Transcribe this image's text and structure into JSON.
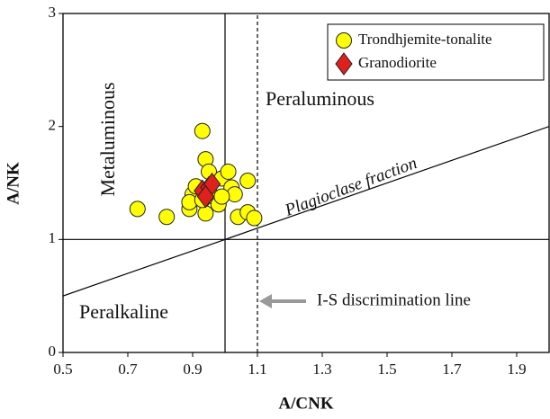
{
  "chart_data": {
    "type": "scatter",
    "x_label": "A/CNK",
    "y_label": "A/NK",
    "xlim": [
      0.5,
      2.0
    ],
    "ylim": [
      0,
      3
    ],
    "xticks": [
      0.5,
      0.7,
      0.9,
      1.1,
      1.3,
      1.5,
      1.7,
      1.9
    ],
    "yticks": [
      0,
      1,
      2,
      3
    ],
    "legend": "upper right",
    "reference_lines": [
      {
        "x": [
          0.5,
          2.0
        ],
        "y": [
          1,
          1
        ],
        "style": "solid"
      },
      {
        "x": [
          1.0,
          1.0
        ],
        "y": [
          0,
          3
        ],
        "style": "solid"
      },
      {
        "x": [
          1.1,
          1.1
        ],
        "y": [
          0,
          3
        ],
        "style": "dashed"
      },
      {
        "x": [
          0.5,
          2.0
        ],
        "y": [
          0.5,
          2.0
        ],
        "style": "solid"
      }
    ],
    "annotations": [
      "Metaluminous",
      "Peraluminous",
      "Peralkaline",
      "Plagioclase fraction",
      "I-S discrimination line"
    ],
    "series": [
      {
        "name": "Trondhjemite-tonalite",
        "color": "#ffff00",
        "marker": "circle",
        "x": [
          0.73,
          0.82,
          0.93,
          0.94,
          0.9,
          0.89,
          0.89,
          0.91,
          0.94,
          0.95,
          0.97,
          0.98,
          0.99,
          1.01,
          1.02,
          1.03,
          1.04,
          1.07,
          1.07,
          1.09,
          0.93,
          0.99
        ],
        "values": [
          1.27,
          1.2,
          1.96,
          1.71,
          1.4,
          1.27,
          1.33,
          1.47,
          1.23,
          1.6,
          1.37,
          1.31,
          1.54,
          1.6,
          1.46,
          1.4,
          1.2,
          1.52,
          1.24,
          1.19,
          1.35,
          1.38
        ]
      },
      {
        "name": "Granodiorite",
        "color": "#e0201b",
        "marker": "diamond",
        "x": [
          0.93,
          0.95,
          0.96,
          0.94
        ],
        "values": [
          1.43,
          1.46,
          1.49,
          1.38
        ]
      }
    ]
  }
}
